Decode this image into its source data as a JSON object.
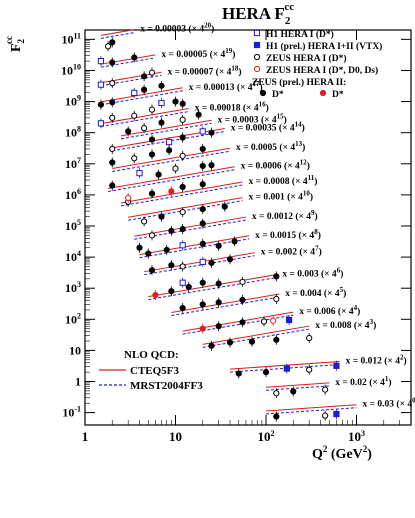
{
  "chart_data": {
    "type": "scatter",
    "title": "HERA F",
    "title_sub": "2",
    "title_sup": "cc",
    "ylabel_main": "F",
    "ylabel_sub": "2",
    "ylabel_sup": "cc",
    "xlabel": "Q",
    "xlabel_sup": "2",
    "xlabel_unit": " (GeV",
    "xlabel_unit_sup": "2",
    "xlabel_unit_end": ")",
    "x_scale": "log",
    "y_scale": "log",
    "xlim": [
      1,
      4000
    ],
    "ylim": [
      0.04,
      200000000000.0
    ],
    "x_ticks": [
      {
        "v": 1,
        "base": "1",
        "sup": ""
      },
      {
        "v": 10,
        "base": "10",
        "sup": ""
      },
      {
        "v": 100,
        "base": "10",
        "sup": "2"
      },
      {
        "v": 1000,
        "base": "10",
        "sup": "3"
      }
    ],
    "y_ticks": [
      {
        "v": 100000000000.0,
        "base": "10",
        "sup": "11"
      },
      {
        "v": 10000000000.0,
        "base": "10",
        "sup": "10"
      },
      {
        "v": 1000000000.0,
        "base": "10",
        "sup": "9"
      },
      {
        "v": 100000000.0,
        "base": "10",
        "sup": "8"
      },
      {
        "v": 10000000.0,
        "base": "10",
        "sup": "7"
      },
      {
        "v": 1000000.0,
        "base": "10",
        "sup": "6"
      },
      {
        "v": 100000.0,
        "base": "10",
        "sup": "5"
      },
      {
        "v": 10000.0,
        "base": "10",
        "sup": "4"
      },
      {
        "v": 1000.0,
        "base": "10",
        "sup": "3"
      },
      {
        "v": 100.0,
        "base": "10",
        "sup": "2"
      },
      {
        "v": 10,
        "base": "10",
        "sup": ""
      },
      {
        "v": 1,
        "base": "1",
        "sup": ""
      },
      {
        "v": 0.1,
        "base": "10",
        "sup": "-1"
      }
    ],
    "legend": [
      {
        "label": "H1 HERA I (D*)",
        "marker": "open-square",
        "color": "#1c1cd6"
      },
      {
        "label": "H1 (prel.) HERA I+II  (VTX)",
        "marker": "filled-square",
        "color": "#1c1cd6"
      },
      {
        "label": "ZEUS HERA I (D*)",
        "marker": "open-circle",
        "color": "#000000"
      },
      {
        "label": "ZEUS HERA I (D*, D0, Ds)",
        "marker": "open-circle",
        "color": "#e01c1c"
      },
      {
        "label": "ZEUS (prel.) HERA II:",
        "marker": "none",
        "color": "#000000"
      },
      {
        "label": "D*",
        "marker": "filled-circle",
        "color": "#000000"
      },
      {
        "label": "D*",
        "marker": "filled-circle",
        "color": "#e01c1c"
      }
    ],
    "curve_legend": {
      "header": "NLO QCD:",
      "entries": [
        {
          "label": "CTEQ5F3",
          "style": "solid",
          "color": "#e01c1c"
        },
        {
          "label": "MRST2004FF3",
          "style": "dashed",
          "color": "#1c1cd6"
        }
      ]
    },
    "series": [
      {
        "x_label": "x = 0.00003",
        "scale": "(× 4",
        "scale_sup": "20",
        "y_at_q2_1": 110000000000.0,
        "slope": 0.5,
        "q2_min": 1.5,
        "q2_max": 3.5,
        "points": [
          [
            1.8,
            60000000000.0,
            "oc"
          ],
          [
            2.0,
            80000000000.0,
            "fc"
          ]
        ]
      },
      {
        "x_label": "x = 0.00005",
        "scale": "(× 4",
        "scale_sup": "19",
        "y_at_q2_1": 13000000000.0,
        "slope": 0.5,
        "q2_min": 1.5,
        "q2_max": 6.0,
        "points": [
          [
            1.5,
            20000000000.0,
            "os"
          ],
          [
            2.0,
            18000000000.0,
            "fc"
          ],
          [
            3.5,
            26000000000.0,
            "fc"
          ]
        ]
      },
      {
        "x_label": "x = 0.00007",
        "scale": "(× 4",
        "scale_sup": "18",
        "y_at_q2_1": 3300000000.0,
        "slope": 0.5,
        "q2_min": 1.5,
        "q2_max": 7.0,
        "points": [
          [
            1.5,
            3500000000.0,
            "os"
          ],
          [
            2.0,
            3900000000.0,
            "oc"
          ],
          [
            4.5,
            6500000000.0,
            "fc"
          ],
          [
            5.5,
            8500000000.0,
            "oc"
          ]
        ]
      },
      {
        "x_label": "x = 0.00013",
        "scale": "(× 4",
        "scale_sup": "17",
        "y_at_q2_1": 800000000.0,
        "slope": 0.5,
        "q2_min": 1.5,
        "q2_max": 12.0,
        "points": [
          [
            1.5,
            800000000.0,
            "fc"
          ],
          [
            2.0,
            950000000.0,
            "fc"
          ],
          [
            3.5,
            1900000000.0,
            "os"
          ],
          [
            4.5,
            2400000000.0,
            "fc"
          ],
          [
            7.0,
            3200000000.0,
            "fc"
          ]
        ]
      },
      {
        "x_label": "x = 0.00018",
        "scale": "(× 4",
        "scale_sup": "16",
        "y_at_q2_1": 160000000.0,
        "slope": 0.5,
        "q2_min": 1.5,
        "q2_max": 14.0,
        "points": [
          [
            1.5,
            200000000.0,
            "os"
          ],
          [
            2.0,
            300000000.0,
            "oc"
          ],
          [
            3.5,
            350000000.0,
            "oc"
          ],
          [
            5.5,
            550000000.0,
            "oc"
          ],
          [
            7.0,
            900000000.0,
            "os"
          ],
          [
            10.0,
            1000000000.0,
            "fc"
          ],
          [
            12.0,
            850000000.0,
            "fc"
          ]
        ]
      },
      {
        "x_label": "x = 0.0003",
        "scale": "(× 4",
        "scale_sup": "15",
        "y_at_q2_1": 50000000.0,
        "slope": 0.5,
        "q2_min": 2.5,
        "q2_max": 25.0,
        "points": [
          [
            3.0,
            110000000.0,
            "fc"
          ],
          [
            4.5,
            140000000.0,
            "oc"
          ],
          [
            7.0,
            210000000.0,
            "fc"
          ],
          [
            12.0,
            260000000.0,
            "oc"
          ],
          [
            18.0,
            380000000.0,
            "fc"
          ]
        ]
      },
      {
        "x_label": "x = 0.00035",
        "scale": "(× 4",
        "scale_sup": "14",
        "y_at_q2_1": 23000000.0,
        "slope": 0.5,
        "q2_min": 2.0,
        "q2_max": 35.0,
        "points": [
          [
            2.0,
            30000000.0,
            "oc"
          ],
          [
            5.5,
            60000000.0,
            "fc"
          ],
          [
            8.5,
            50000000.0,
            "os"
          ],
          [
            12.0,
            70000000.0,
            "fc"
          ],
          [
            20.0,
            110000000.0,
            "os"
          ],
          [
            25.0,
            100000000.0,
            "fc"
          ]
        ]
      },
      {
        "x_label": "x = 0.0005",
        "scale": "(× 4",
        "scale_sup": "13",
        "y_at_q2_1": 5000000.0,
        "slope": 0.5,
        "q2_min": 2.0,
        "q2_max": 40.0,
        "points": [
          [
            2.0,
            11000000.0,
            "fc"
          ],
          [
            3.5,
            15000000.0,
            "oc"
          ],
          [
            5.5,
            20000000.0,
            "fc"
          ],
          [
            8.5,
            27000000.0,
            "fc"
          ],
          [
            12.0,
            18000000.0,
            "oc"
          ],
          [
            20.0,
            30000000.0,
            "fc"
          ]
        ]
      },
      {
        "x_label": "x = 0.0006",
        "scale": "(× 4",
        "scale_sup": "12",
        "y_at_q2_1": 1200000.0,
        "slope": 0.5,
        "q2_min": 1.8,
        "q2_max": 45.0,
        "points": [
          [
            2.0,
            2000000.0,
            "fc"
          ],
          [
            4.0,
            5000000.0,
            "os"
          ],
          [
            6.5,
            4500000.0,
            "fc"
          ],
          [
            10.0,
            7000000.0,
            "oc"
          ],
          [
            20.0,
            8500000.0,
            "fc"
          ],
          [
            25.0,
            9000000.0,
            "fc"
          ]
        ]
      },
      {
        "x_label": "x = 0.0008",
        "scale": "(× 4",
        "scale_sup": "11",
        "y_at_q2_1": 350000.0,
        "slope": 0.5,
        "q2_min": 2.5,
        "q2_max": 55.0,
        "points": [
          [
            3.0,
            600000.0,
            "oc"
          ],
          [
            3.0,
            800000.0,
            "or"
          ],
          [
            5.5,
            1100000.0,
            "fc"
          ],
          [
            9.0,
            1300000.0,
            "fr"
          ],
          [
            12.0,
            1800000.0,
            "fc"
          ],
          [
            20.0,
            2200000.0,
            "fc"
          ]
        ]
      },
      {
        "x_label": "x = 0.001",
        "scale": "(× 4",
        "scale_sup": "10",
        "y_at_q2_1": 110000.0,
        "slope": 0.5,
        "q2_min": 3.0,
        "q2_max": 55.0,
        "points": [
          [
            4.5,
            140000.0,
            "oc"
          ],
          [
            7.0,
            200000.0,
            "fc"
          ],
          [
            12.0,
            280000.0,
            "oc"
          ],
          [
            20.0,
            350000.0,
            "fc"
          ],
          [
            35.0,
            420000.0,
            "fc"
          ]
        ]
      },
      {
        "x_label": "x = 0.0012",
        "scale": "(× 4",
        "scale_sup": "9",
        "y_at_q2_1": 25000.0,
        "slope": 0.5,
        "q2_min": 3.5,
        "q2_max": 60.0,
        "points": [
          [
            4.0,
            20000.0,
            "fc"
          ],
          [
            5.5,
            50000.0,
            "oc"
          ],
          [
            9.0,
            70000.0,
            "fc"
          ],
          [
            12.0,
            80000.0,
            "fc"
          ],
          [
            20.0,
            120000.0,
            "fc"
          ]
        ]
      },
      {
        "x_label": "x = 0.0015",
        "scale": "(× 4",
        "scale_sup": "8",
        "y_at_q2_1": 6000.0,
        "slope": 0.5,
        "q2_min": 4.0,
        "q2_max": 65.0,
        "points": [
          [
            5.0,
            13000.0,
            "fc"
          ],
          [
            8.0,
            17000.0,
            "fc"
          ],
          [
            12.0,
            24000.0,
            "os"
          ],
          [
            20.0,
            27000.0,
            "fc"
          ],
          [
            30.0,
            23000.0,
            "fc"
          ],
          [
            45.0,
            32000.0,
            "fc"
          ]
        ]
      },
      {
        "x_label": "x = 0.002",
        "scale": "(× 4",
        "scale_sup": "7",
        "y_at_q2_1": 1600.0,
        "slope": 0.5,
        "q2_min": 4.5,
        "q2_max": 75.0,
        "points": [
          [
            5.5,
            3800.0,
            "fc"
          ],
          [
            9.0,
            5500.0,
            "fc"
          ],
          [
            12.0,
            5000.0,
            "oc"
          ],
          [
            20.0,
            7000.0,
            "os"
          ],
          [
            25.0,
            6500.0,
            "fc"
          ],
          [
            40.0,
            8500.0,
            "fc"
          ]
        ]
      },
      {
        "x_label": "x = 0.003",
        "scale": "(× 4",
        "scale_sup": "6",
        "y_at_q2_1": 240.0,
        "slope": 0.5,
        "q2_min": 5.0,
        "q2_max": 130.0,
        "points": [
          [
            6.0,
            600.0,
            "fr"
          ],
          [
            9.0,
            800.0,
            "fc"
          ],
          [
            12.0,
            1500.0,
            "os"
          ],
          [
            14.0,
            1100.0,
            "fc"
          ],
          [
            20.0,
            1500.0,
            "fc"
          ],
          [
            30.0,
            1400.0,
            "fc"
          ],
          [
            55.0,
            1600.0,
            "oc"
          ],
          [
            130.0,
            2400.0,
            "fc"
          ]
        ]
      },
      {
        "x_label": "x = 0.004",
        "scale": "(× 4",
        "scale_sup": "5",
        "y_at_q2_1": 55,
        "slope": 0.5,
        "q2_min": 9.0,
        "q2_max": 140.0,
        "points": [
          [
            12.0,
            230.0,
            "fc"
          ],
          [
            20.0,
            300.0,
            "fc"
          ],
          [
            30.0,
            350.0,
            "fc"
          ],
          [
            55.0,
            420.0,
            "fc"
          ],
          [
            130.0,
            450.0,
            "oc"
          ]
        ]
      },
      {
        "x_label": "x = 0.006",
        "scale": "(× 4",
        "scale_sup": "4",
        "y_at_q2_1": 12,
        "slope": 0.5,
        "q2_min": 12.0,
        "q2_max": 200.0,
        "points": [
          [
            20.0,
            50,
            "fr"
          ],
          [
            30.0,
            60,
            "fc"
          ],
          [
            55.0,
            80,
            "fc"
          ],
          [
            95.0,
            85,
            "oc"
          ],
          [
            120.0,
            90,
            "or"
          ],
          [
            180.0,
            95,
            "fs"
          ]
        ]
      },
      {
        "x_label": "x = 0.008",
        "scale": "(× 4",
        "scale_sup": "3",
        "y_at_q2_1": 3.5,
        "slope": 0.5,
        "q2_min": 20.0,
        "q2_max": 300.0,
        "points": [
          [
            25.0,
            14,
            "fc"
          ],
          [
            40.0,
            18,
            "fc"
          ],
          [
            70.0,
            19,
            "fc"
          ],
          [
            130.0,
            22,
            "fc"
          ],
          [
            300.0,
            25,
            "oc"
          ]
        ]
      },
      {
        "x_label": "x = 0.012",
        "scale": "(× 4",
        "scale_sup": "2",
        "y_at_q2_1": 1.2,
        "slope": 0.2,
        "q2_min": 40.0,
        "q2_max": 650.0,
        "points": [
          [
            50.0,
            1.8,
            "fc"
          ],
          [
            100.0,
            2.0,
            "fc"
          ],
          [
            170.0,
            2.6,
            "fs"
          ],
          [
            300.0,
            2.4,
            "oc"
          ],
          [
            600.0,
            3.2,
            "fs"
          ]
        ]
      },
      {
        "x_label": "x = 0.02",
        "scale": "(× 4",
        "scale_sup": "1",
        "y_at_q2_1": 0.26,
        "slope": 0.2,
        "q2_min": 100.0,
        "q2_max": 500.0,
        "points": [
          [
            130.0,
            0.42,
            "oc"
          ],
          [
            200.0,
            0.48,
            "fc"
          ],
          [
            450.0,
            0.55,
            "oc"
          ]
        ]
      },
      {
        "x_label": "x = 0.03",
        "scale": "(× 4",
        "scale_sup": "0",
        "y_at_q2_1": 0.045,
        "slope": 0.2,
        "q2_min": 100.0,
        "q2_max": 1000.0,
        "points": [
          [
            130.0,
            0.075,
            "fc"
          ],
          [
            450.0,
            0.08,
            "oc"
          ],
          [
            600.0,
            0.09,
            "fs"
          ]
        ]
      }
    ]
  }
}
